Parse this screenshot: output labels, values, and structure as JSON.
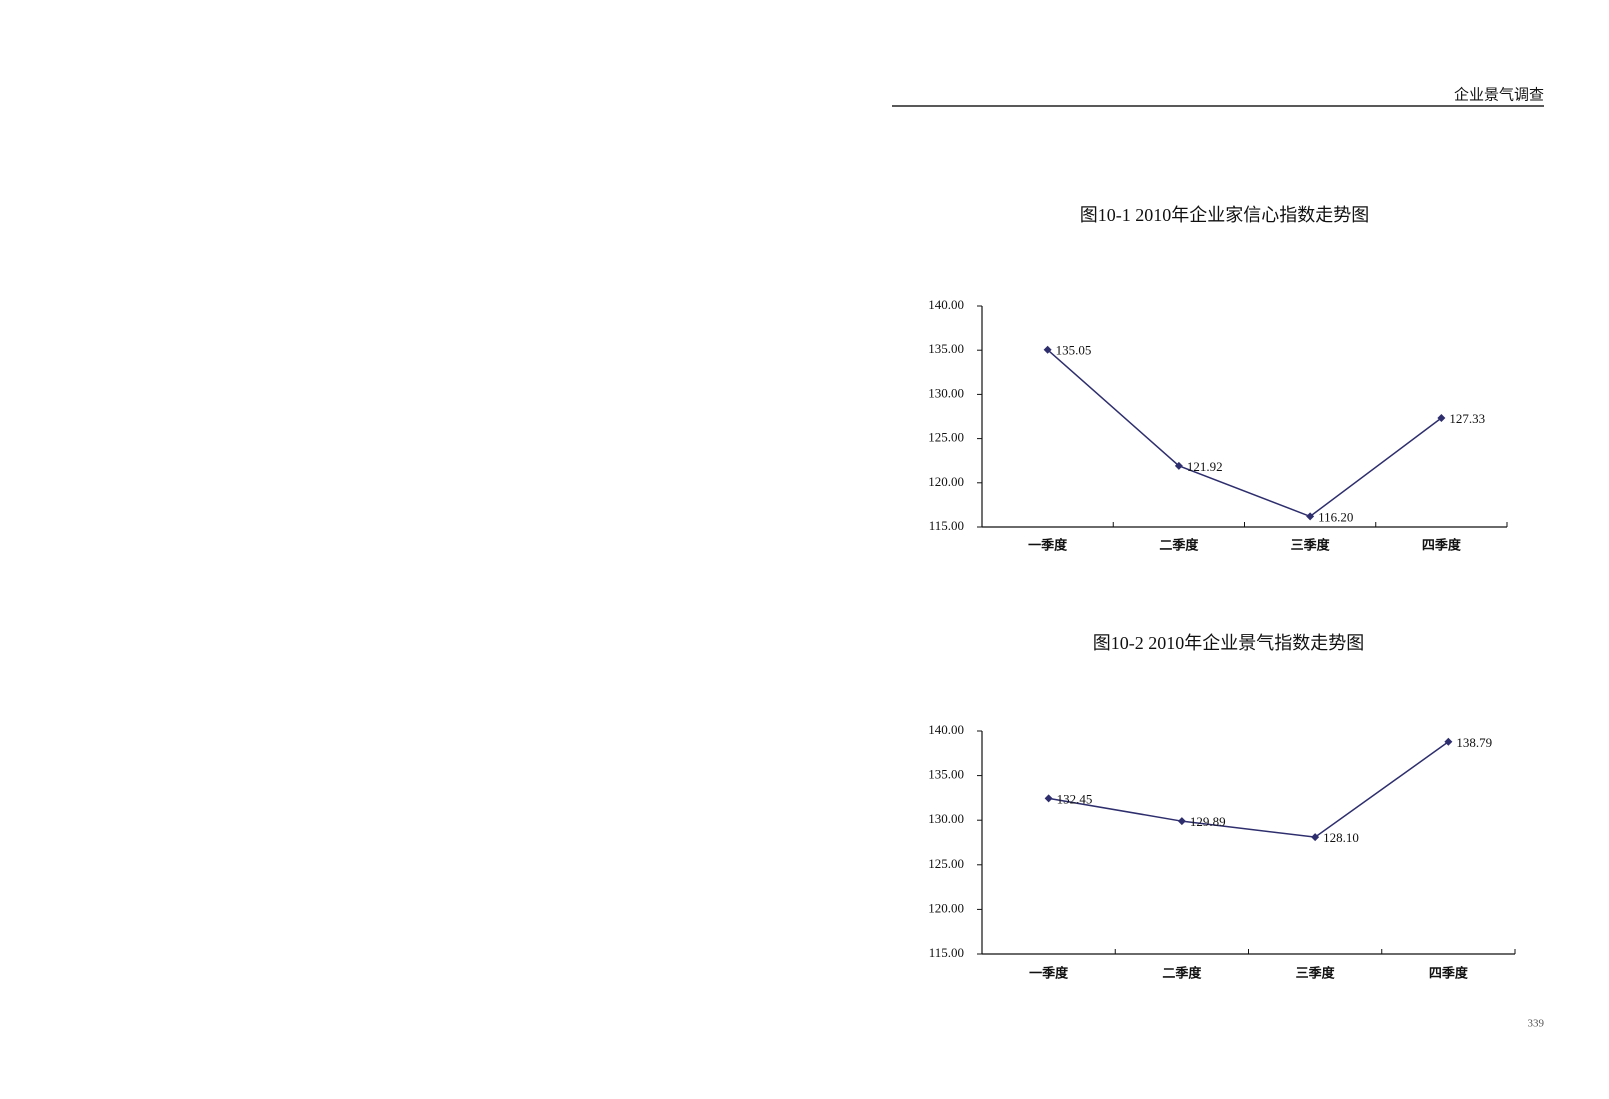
{
  "header": "企业景气调查",
  "page_number": "339",
  "chart_data": [
    {
      "type": "line",
      "title": "图10-1 2010年企业家信心指数走势图",
      "categories": [
        "一季度",
        "二季度",
        "三季度",
        "四季度"
      ],
      "values": [
        135.05,
        121.92,
        116.2,
        127.33
      ],
      "value_labels": [
        "135.05",
        "121.92",
        "116.20",
        "127.33"
      ],
      "color": "#2e2e6e",
      "ylim": [
        115,
        140
      ],
      "yticks": [
        {
          "value": 115,
          "label": "115.00"
        },
        {
          "value": 120,
          "label": "120.00"
        },
        {
          "value": 125,
          "label": "125.00"
        },
        {
          "value": 130,
          "label": "130.00"
        },
        {
          "value": 135,
          "label": "135.00"
        },
        {
          "value": 140,
          "label": "140.00"
        }
      ],
      "grid": false
    },
    {
      "type": "line",
      "title": "图10-2 2010年企业景气指数走势图",
      "categories": [
        "一季度",
        "二季度",
        "三季度",
        "四季度"
      ],
      "values": [
        132.45,
        129.89,
        128.1,
        138.79
      ],
      "value_labels": [
        "132.45",
        "129.89",
        "128.10",
        "138.79"
      ],
      "color": "#2e2e6e",
      "ylim": [
        115,
        140
      ],
      "yticks": [
        {
          "value": 115,
          "label": "115.00"
        },
        {
          "value": 120,
          "label": "120.00"
        },
        {
          "value": 125,
          "label": "125.00"
        },
        {
          "value": 130,
          "label": "130.00"
        },
        {
          "value": 135,
          "label": "135.00"
        },
        {
          "value": 140,
          "label": "140.00"
        }
      ],
      "grid": false
    }
  ]
}
